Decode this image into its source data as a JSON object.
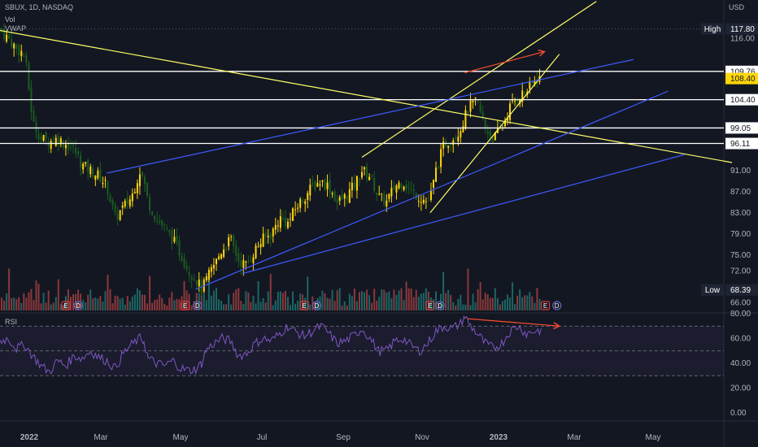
{
  "header": {
    "symbol_line": "SBUX, 1D, NASDAQ",
    "vol_label": "Vol",
    "vwap_label": "VWAP",
    "rsi_label": "RSI"
  },
  "currency": "USD",
  "colors": {
    "bg": "#131722",
    "up": "#ffd60a",
    "down": "#1b5e20",
    "vol_up": "#26a69a",
    "vol_down": "#ef5350",
    "yellow_line": "#ffff66",
    "blue_line": "#3d5afe",
    "red_arrow": "#f04a32",
    "rsi": "#7e57c2",
    "level": "#ffffff"
  },
  "chart_data": [
    {
      "type": "candlestick",
      "title": "SBUX, 1D, NASDAQ",
      "x_ticks": [
        "2022",
        "Mar",
        "May",
        "Jul",
        "Sep",
        "Nov",
        "2023",
        "Mar",
        "May"
      ],
      "y_ticks": [
        116.0,
        91.0,
        87.0,
        83.0,
        79.0,
        75.0,
        72.0,
        66.0
      ],
      "ylim": [
        64.5,
        120.5
      ],
      "price_labels": [
        {
          "label": "High",
          "value": "117.80",
          "price": 117.8
        },
        {
          "label": "",
          "value": "109.76",
          "price": 109.76
        },
        {
          "label": "",
          "value": "108.40",
          "price": 108.4,
          "highlight": true
        },
        {
          "label": "",
          "value": "104.40",
          "price": 104.4
        },
        {
          "label": "",
          "value": "99.05",
          "price": 99.05
        },
        {
          "label": "",
          "value": "96.11",
          "price": 96.11
        },
        {
          "label": "Low",
          "value": "68.39",
          "price": 68.39
        }
      ],
      "horizontal_levels": [
        109.76,
        104.4,
        99.05,
        96.11
      ],
      "close_path": [
        [
          0,
          117.8
        ],
        [
          10,
          116
        ],
        [
          20,
          114
        ],
        [
          30,
          113
        ],
        [
          40,
          100
        ],
        [
          50,
          97
        ],
        [
          60,
          96.5
        ],
        [
          70,
          97
        ],
        [
          80,
          96
        ],
        [
          90,
          95
        ],
        [
          100,
          92
        ],
        [
          110,
          91
        ],
        [
          120,
          90
        ],
        [
          130,
          88
        ],
        [
          140,
          82
        ],
        [
          150,
          84
        ],
        [
          160,
          86
        ],
        [
          170,
          91
        ],
        [
          175,
          89
        ],
        [
          180,
          85
        ],
        [
          190,
          82
        ],
        [
          200,
          80
        ],
        [
          210,
          78
        ],
        [
          220,
          75
        ],
        [
          230,
          72
        ],
        [
          240,
          70
        ],
        [
          245,
          68.4
        ],
        [
          250,
          70
        ],
        [
          260,
          73
        ],
        [
          270,
          76
        ],
        [
          280,
          78
        ],
        [
          290,
          74
        ],
        [
          300,
          73
        ],
        [
          310,
          76
        ],
        [
          320,
          78
        ],
        [
          330,
          79
        ],
        [
          340,
          82
        ],
        [
          350,
          81
        ],
        [
          360,
          84
        ],
        [
          370,
          86
        ],
        [
          380,
          88
        ],
        [
          390,
          89
        ],
        [
          400,
          88
        ],
        [
          410,
          85
        ],
        [
          420,
          86
        ],
        [
          430,
          88
        ],
        [
          440,
          91
        ],
        [
          450,
          90
        ],
        [
          460,
          86
        ],
        [
          470,
          85
        ],
        [
          480,
          88
        ],
        [
          490,
          89
        ],
        [
          500,
          87
        ],
        [
          510,
          86
        ],
        [
          520,
          85
        ],
        [
          525,
          87
        ],
        [
          530,
          91
        ],
        [
          540,
          96
        ],
        [
          550,
          97
        ],
        [
          560,
          99
        ],
        [
          570,
          103
        ],
        [
          580,
          104
        ],
        [
          590,
          99
        ],
        [
          600,
          97
        ],
        [
          610,
          99
        ],
        [
          620,
          103
        ],
        [
          630,
          105
        ],
        [
          640,
          106
        ],
        [
          650,
          108
        ],
        [
          655,
          108.4
        ]
      ],
      "x_data_max": 880,
      "event_badges": [
        {
          "x": 80,
          "tag": "E",
          "kind": "earnings"
        },
        {
          "x": 95,
          "tag": "D",
          "kind": "dividend"
        },
        {
          "x": 225,
          "tag": "E",
          "kind": "earnings"
        },
        {
          "x": 240,
          "tag": "D",
          "kind": "dividend"
        },
        {
          "x": 370,
          "tag": "E",
          "kind": "earnings"
        },
        {
          "x": 385,
          "tag": "D",
          "kind": "dividend"
        },
        {
          "x": 523,
          "tag": "E",
          "kind": "earnings"
        },
        {
          "x": 535,
          "tag": "D",
          "kind": "dividend"
        },
        {
          "x": 663,
          "tag": "E",
          "kind": "earnings"
        },
        {
          "x": 677,
          "tag": "D",
          "kind": "dividend"
        }
      ],
      "trend_lines": [
        {
          "color": "yellow",
          "from": [
            0,
            117.5
          ],
          "to": [
            890,
            92.5
          ]
        },
        {
          "color": "yellow",
          "from": [
            440,
            93.5
          ],
          "to": [
            725,
            123
          ]
        },
        {
          "color": "yellow",
          "from": [
            523,
            83
          ],
          "to": [
            680,
            113
          ]
        },
        {
          "color": "blue",
          "from": [
            130,
            90.5
          ],
          "to": [
            770,
            112
          ]
        },
        {
          "color": "blue",
          "from": [
            238,
            68.5
          ],
          "to": [
            812,
            106
          ]
        },
        {
          "color": "blue",
          "from": [
            295,
            71.5
          ],
          "to": [
            832,
            94
          ]
        },
        {
          "color": "red_arrow",
          "from": [
            565,
            109.5
          ],
          "to": [
            662,
            113.5
          ]
        }
      ]
    },
    {
      "type": "line",
      "title": "RSI",
      "y_ticks": [
        80.0,
        60.0,
        40.0,
        20.0,
        0.0
      ],
      "ylim": [
        0,
        80
      ],
      "bands": [
        70,
        50,
        30
      ],
      "series": [
        {
          "name": "RSI",
          "points": [
            [
              0,
              58
            ],
            [
              10,
              60
            ],
            [
              20,
              52
            ],
            [
              30,
              55
            ],
            [
              40,
              46
            ],
            [
              50,
              38
            ],
            [
              60,
              33
            ],
            [
              70,
              42
            ],
            [
              80,
              38
            ],
            [
              90,
              46
            ],
            [
              100,
              44
            ],
            [
              110,
              50
            ],
            [
              120,
              45
            ],
            [
              130,
              42
            ],
            [
              140,
              36
            ],
            [
              150,
              48
            ],
            [
              160,
              55
            ],
            [
              170,
              60
            ],
            [
              175,
              58
            ],
            [
              180,
              44
            ],
            [
              190,
              40
            ],
            [
              200,
              38
            ],
            [
              210,
              42
            ],
            [
              220,
              36
            ],
            [
              230,
              34
            ],
            [
              240,
              36
            ],
            [
              245,
              40
            ],
            [
              250,
              50
            ],
            [
              260,
              56
            ],
            [
              270,
              60
            ],
            [
              280,
              58
            ],
            [
              290,
              46
            ],
            [
              300,
              48
            ],
            [
              310,
              56
            ],
            [
              320,
              60
            ],
            [
              330,
              58
            ],
            [
              340,
              64
            ],
            [
              350,
              70
            ],
            [
              360,
              65
            ],
            [
              370,
              62
            ],
            [
              380,
              66
            ],
            [
              390,
              70
            ],
            [
              400,
              64
            ],
            [
              410,
              56
            ],
            [
              420,
              58
            ],
            [
              430,
              62
            ],
            [
              440,
              68
            ],
            [
              450,
              60
            ],
            [
              460,
              50
            ],
            [
              470,
              50
            ],
            [
              480,
              58
            ],
            [
              490,
              60
            ],
            [
              500,
              54
            ],
            [
              510,
              50
            ],
            [
              520,
              56
            ],
            [
              530,
              66
            ],
            [
              540,
              70
            ],
            [
              550,
              68
            ],
            [
              560,
              72
            ],
            [
              565,
              78
            ],
            [
              570,
              72
            ],
            [
              580,
              64
            ],
            [
              590,
              56
            ],
            [
              600,
              52
            ],
            [
              610,
              56
            ],
            [
              620,
              66
            ],
            [
              630,
              70
            ],
            [
              640,
              64
            ],
            [
              650,
              66
            ],
            [
              660,
              67
            ]
          ]
        }
      ],
      "red_arrow": {
        "from": [
          568,
          76
        ],
        "to": [
          680,
          70
        ]
      }
    }
  ],
  "x_axis": [
    "2022",
    "Mar",
    "May",
    "Jul",
    "Sep",
    "Nov",
    "2023",
    "Mar",
    "May"
  ]
}
